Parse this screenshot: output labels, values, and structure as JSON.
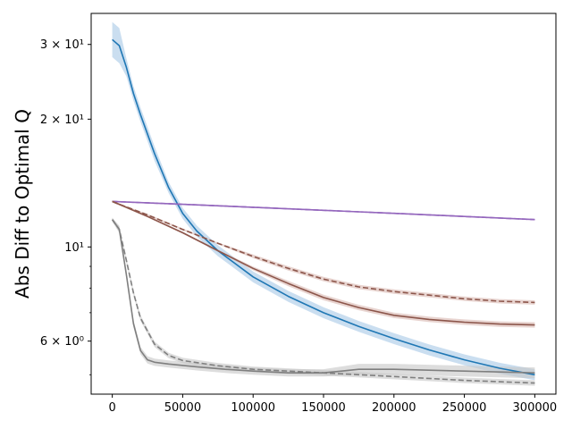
{
  "chart_data": {
    "type": "line",
    "title": "",
    "xlabel": "",
    "ylabel": "Abs Diff to Optimal Q",
    "xlim": [
      -15000,
      315000
    ],
    "ylim": [
      4.5,
      35.5
    ],
    "yscale": "log",
    "grid": false,
    "legend": "none",
    "x_ticks": [
      {
        "value": 0,
        "label": "0"
      },
      {
        "value": 50000,
        "label": "50000"
      },
      {
        "value": 100000,
        "label": "100000"
      },
      {
        "value": 150000,
        "label": "150000"
      },
      {
        "value": 200000,
        "label": "200000"
      },
      {
        "value": 250000,
        "label": "250000"
      },
      {
        "value": 300000,
        "label": "300000"
      }
    ],
    "y_major_ticks": [
      {
        "value": 6,
        "label": "6 × 10⁰"
      },
      {
        "value": 10,
        "label": "10¹"
      },
      {
        "value": 20,
        "label": "2 × 10¹"
      },
      {
        "value": 30,
        "label": "3 × 10¹"
      }
    ],
    "y_minor_ticks": [
      5,
      7,
      8,
      9
    ],
    "series": [
      {
        "color": "#1f77b4",
        "band_color": "#a6c8e6",
        "dash": "solid",
        "x": [
          0,
          5000,
          10000,
          15000,
          20000,
          30000,
          40000,
          50000,
          60000,
          75000,
          100000,
          125000,
          150000,
          175000,
          200000,
          225000,
          250000,
          275000,
          300000
        ],
        "y": [
          30.8,
          29.8,
          26.5,
          23.0,
          20.5,
          16.6,
          13.8,
          12.0,
          10.9,
          9.8,
          8.5,
          7.65,
          7.0,
          6.5,
          6.08,
          5.72,
          5.42,
          5.18,
          5.0
        ],
        "band": [
          1.1,
          1.1,
          1.05,
          1.04,
          1.04,
          1.04,
          1.03,
          1.03,
          1.03,
          1.03,
          1.03,
          1.03,
          1.03,
          1.03,
          1.03,
          1.03,
          1.03,
          1.03,
          1.03
        ]
      },
      {
        "color": "#9467bd",
        "band_color": "#c9b3e0",
        "dash": "solid",
        "x": [
          0,
          50000,
          100000,
          150000,
          200000,
          250000,
          300000
        ],
        "y": [
          12.8,
          12.6,
          12.4,
          12.2,
          12.0,
          11.8,
          11.6
        ],
        "band": [
          1.003,
          1.003,
          1.003,
          1.003,
          1.003,
          1.003,
          1.003
        ]
      },
      {
        "color": "#9467bd",
        "band_color": "#c9b3e0",
        "dash": "dashed",
        "x": [
          0,
          50000,
          100000,
          150000,
          200000,
          250000,
          300000
        ],
        "y": [
          12.8,
          12.6,
          12.4,
          12.2,
          12.0,
          11.8,
          11.6
        ],
        "band": [
          1.003,
          1.003,
          1.003,
          1.003,
          1.003,
          1.003,
          1.003
        ]
      },
      {
        "color": "#8c564b",
        "band_color": "#d9b8b1",
        "dash": "solid",
        "x": [
          0,
          5000,
          25000,
          50000,
          75000,
          100000,
          125000,
          150000,
          175000,
          200000,
          225000,
          250000,
          275000,
          300000
        ],
        "y": [
          12.8,
          12.6,
          11.8,
          10.8,
          9.8,
          8.9,
          8.2,
          7.6,
          7.2,
          6.9,
          6.75,
          6.65,
          6.58,
          6.55
        ],
        "band": [
          1.005,
          1.005,
          1.005,
          1.005,
          1.005,
          1.01,
          1.015,
          1.015,
          1.015,
          1.015,
          1.015,
          1.015,
          1.015,
          1.015
        ]
      },
      {
        "color": "#8c564b",
        "band_color": "#d9b8b1",
        "dash": "dashed",
        "x": [
          0,
          5000,
          25000,
          50000,
          75000,
          100000,
          125000,
          150000,
          175000,
          200000,
          225000,
          250000,
          275000,
          300000
        ],
        "y": [
          12.8,
          12.6,
          11.9,
          11.0,
          10.2,
          9.5,
          8.9,
          8.4,
          8.05,
          7.85,
          7.7,
          7.55,
          7.45,
          7.4
        ],
        "band": [
          1.005,
          1.005,
          1.005,
          1.005,
          1.005,
          1.01,
          1.012,
          1.012,
          1.012,
          1.012,
          1.012,
          1.012,
          1.012,
          1.012
        ]
      },
      {
        "color": "#7f7f7f",
        "band_color": "#c7c7c7",
        "dash": "solid",
        "x": [
          0,
          5000,
          10000,
          15000,
          20000,
          25000,
          30000,
          40000,
          60000,
          80000,
          100000,
          125000,
          150000,
          175000,
          200000,
          250000,
          300000
        ],
        "y": [
          11.6,
          11.0,
          8.6,
          6.6,
          5.7,
          5.42,
          5.35,
          5.3,
          5.22,
          5.15,
          5.1,
          5.05,
          5.05,
          5.15,
          5.15,
          5.1,
          5.05
        ],
        "band": [
          1.01,
          1.02,
          1.02,
          1.02,
          1.02,
          1.02,
          1.02,
          1.02,
          1.02,
          1.02,
          1.02,
          1.02,
          1.02,
          1.03,
          1.03,
          1.03,
          1.03
        ]
      },
      {
        "color": "#7f7f7f",
        "band_color": "#c7c7c7",
        "dash": "dashed",
        "x": [
          0,
          5000,
          10000,
          15000,
          20000,
          30000,
          40000,
          50000,
          75000,
          100000,
          150000,
          200000,
          250000,
          300000
        ],
        "y": [
          11.6,
          11.0,
          9.3,
          7.8,
          6.8,
          5.9,
          5.55,
          5.4,
          5.25,
          5.15,
          5.05,
          4.95,
          4.85,
          4.78
        ],
        "band": [
          1.01,
          1.015,
          1.015,
          1.015,
          1.015,
          1.015,
          1.015,
          1.015,
          1.015,
          1.015,
          1.015,
          1.015,
          1.015,
          1.015
        ]
      }
    ]
  }
}
